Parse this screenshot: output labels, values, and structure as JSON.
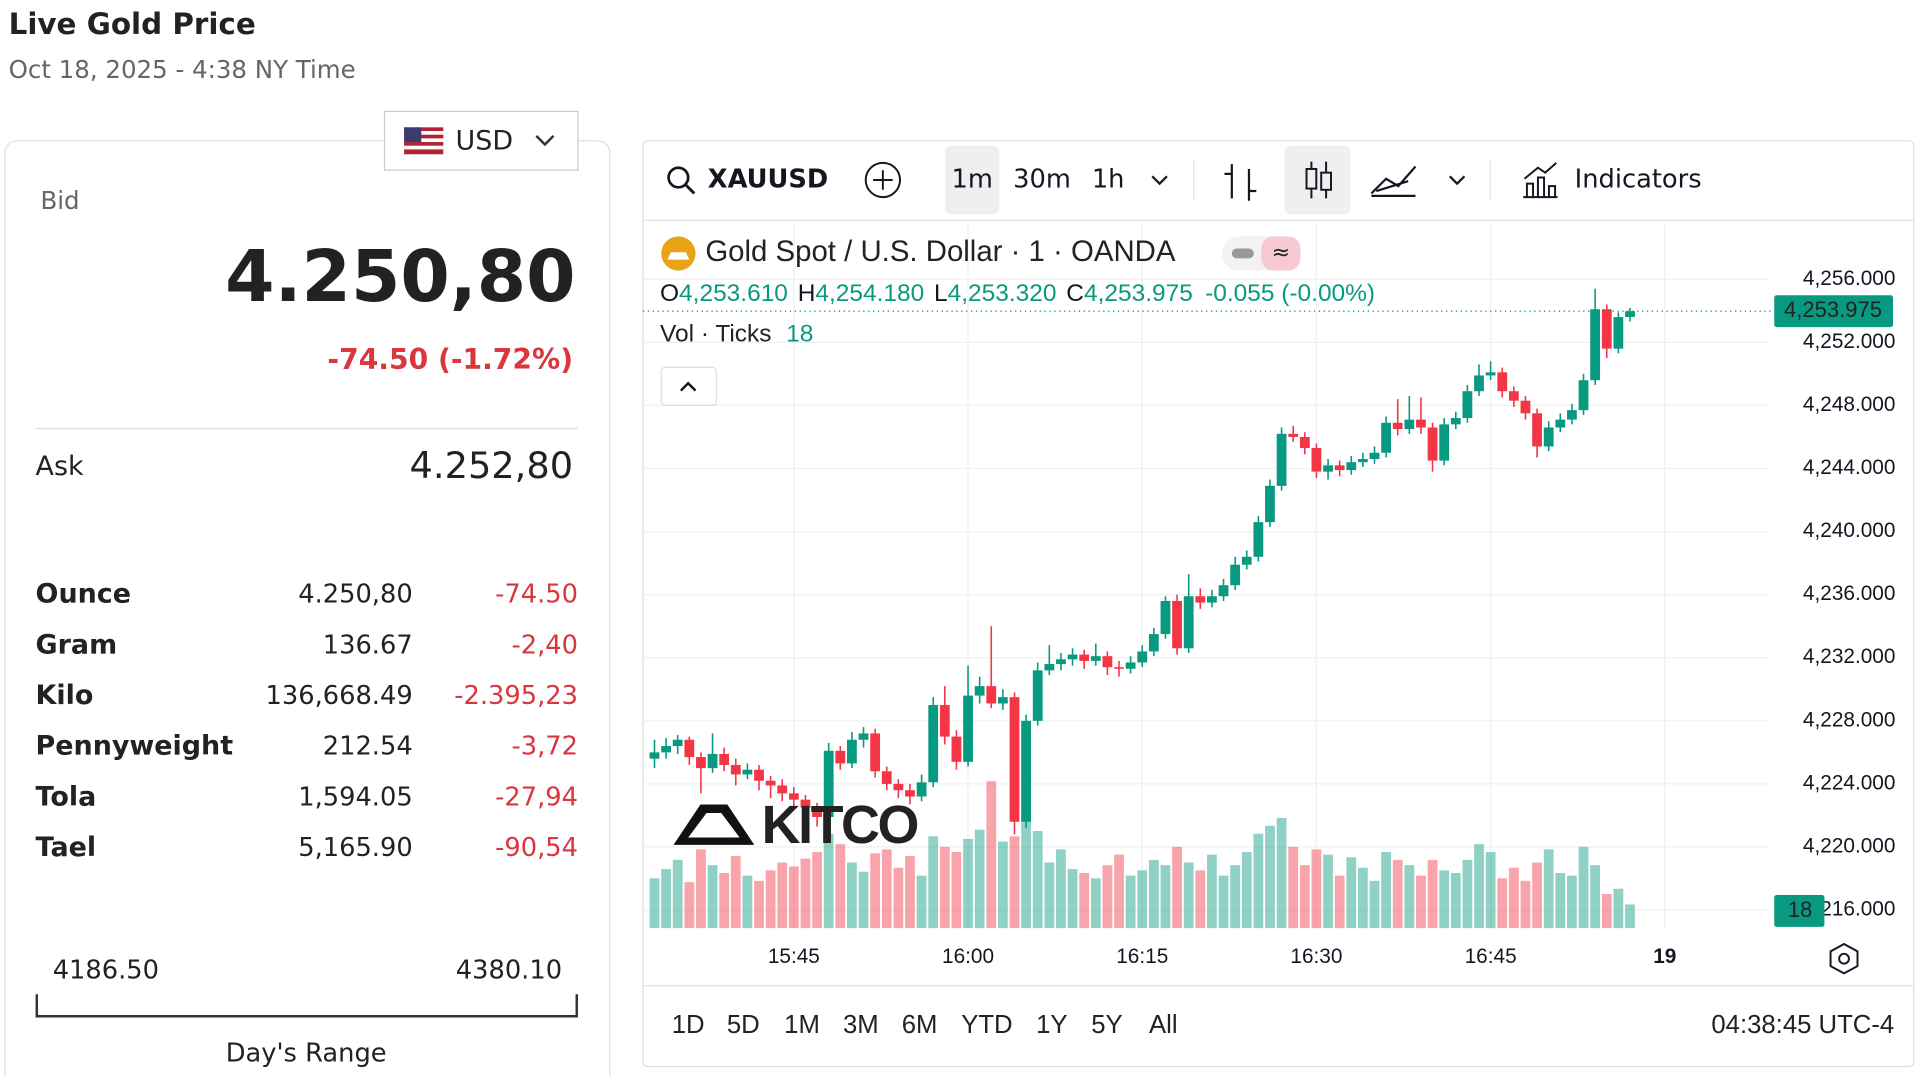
{
  "header": {
    "title": "Live Gold Price",
    "date": "Oct 18, 2025 - 4:38 NY Time"
  },
  "quote": {
    "currency": "USD",
    "bid_label": "Bid",
    "bid": "4.250,80",
    "change": "-74.50 (-1.72%)",
    "ask_label": "Ask",
    "ask": "4.252,80",
    "units": [
      {
        "name": "Ounce",
        "price": "4.250,80",
        "change": "-74.50"
      },
      {
        "name": "Gram",
        "price": "136.67",
        "change": "-2,40"
      },
      {
        "name": "Kilo",
        "price": "136,668.49",
        "change": "-2.395,23"
      },
      {
        "name": "Pennyweight",
        "price": "212.54",
        "change": "-3,72"
      },
      {
        "name": "Tola",
        "price": "1,594.05",
        "change": "-27,94"
      },
      {
        "name": "Tael",
        "price": "5,165.90",
        "change": "-90,54"
      }
    ],
    "range": {
      "low": "4186.50",
      "high": "4380.10",
      "label": "Day's Range"
    }
  },
  "toolbar": {
    "symbol": "XAUUSD",
    "intervals": [
      "1m",
      "30m",
      "1h"
    ],
    "indicators": "Indicators"
  },
  "footer": {
    "ranges": [
      "1D",
      "5D",
      "1M",
      "3M",
      "6M",
      "YTD",
      "1Y",
      "5Y",
      "All"
    ],
    "clock": "04:38:45 UTC-4"
  },
  "logo": "KITCO",
  "chart_data": {
    "type": "candlestick",
    "title": "Gold Spot / U.S. Dollar · 1 · OANDA",
    "legend": [
      {
        "key": "O",
        "value": "4,253.610"
      },
      {
        "key": "H",
        "value": "4,254.180"
      },
      {
        "key": "L",
        "value": "4,253.320"
      },
      {
        "key": "C",
        "value": "4,253.975"
      }
    ],
    "change_label": "-0.055 (-0.00%)",
    "last_price_label": "4,253.975",
    "volume_label": "Vol · Ticks",
    "up_color": "#089981",
    "down_color": "#f23645",
    "grid": true,
    "x": [
      "15:33",
      "15:34",
      "15:35",
      "15:36",
      "15:37",
      "15:38",
      "15:39",
      "15:40",
      "15:41",
      "15:42",
      "15:43",
      "15:44",
      "15:45",
      "15:46",
      "15:47",
      "15:48",
      "15:49",
      "15:50",
      "15:51",
      "15:52",
      "15:53",
      "15:54",
      "15:55",
      "15:56",
      "15:57",
      "15:58",
      "15:59",
      "16:00",
      "16:01",
      "16:02",
      "16:03",
      "16:04",
      "16:05",
      "16:06",
      "16:07",
      "16:08",
      "16:09",
      "16:10",
      "16:11",
      "16:12",
      "16:13",
      "16:14",
      "16:15",
      "16:16",
      "16:17",
      "16:18",
      "16:19",
      "16:20",
      "16:21",
      "16:22",
      "16:23",
      "16:24",
      "16:25",
      "16:26",
      "16:27",
      "16:28",
      "16:29",
      "16:30",
      "16:31",
      "16:32",
      "16:33",
      "16:34",
      "16:35",
      "16:36",
      "16:37",
      "16:38",
      "16:39",
      "16:40",
      "16:41",
      "16:42",
      "16:43",
      "16:44",
      "16:45",
      "16:46",
      "16:47",
      "16:48",
      "16:49",
      "16:50",
      "16:51",
      "16:52",
      "16:53",
      "16:54",
      "16:55",
      "16:56",
      "16:57"
    ],
    "open": [
      4225.6,
      4226.0,
      4226.4,
      4226.8,
      4225.7,
      4225.0,
      4225.9,
      4225.2,
      4224.6,
      4224.9,
      4224.2,
      4223.9,
      4223.4,
      4223.0,
      4222.5,
      4221.9,
      4226.1,
      4225.3,
      4226.8,
      4227.2,
      4224.8,
      4224.0,
      4223.6,
      4223.2,
      4224.1,
      4229.0,
      4227.0,
      4225.4,
      4229.6,
      4230.2,
      4229.1,
      4229.5,
      4221.6,
      4228.0,
      4231.2,
      4231.6,
      4231.9,
      4232.2,
      4231.8,
      4232.1,
      4231.4,
      4231.3,
      4231.7,
      4232.4,
      4233.5,
      4235.6,
      4232.6,
      4235.9,
      4235.5,
      4235.9,
      4236.6,
      4237.9,
      4238.4,
      4240.6,
      4242.9,
      4246.2,
      4246.0,
      4245.3,
      4243.8,
      4244.2,
      4243.9,
      4244.4,
      4244.6,
      4245.0,
      4246.9,
      4246.5,
      4247.1,
      4246.6,
      4244.5,
      4246.8,
      4247.2,
      4248.9,
      4249.9,
      4250.1,
      4248.9,
      4248.3,
      4247.5,
      4245.4,
      4246.6,
      4247.1,
      4247.7,
      4249.6,
      4254.1,
      4251.6,
      4253.61
    ],
    "high": [
      4226.8,
      4226.9,
      4227.1,
      4227.0,
      4226.0,
      4227.2,
      4226.3,
      4225.6,
      4225.3,
      4225.2,
      4224.5,
      4224.3,
      4223.8,
      4223.3,
      4222.8,
      4226.6,
      4226.4,
      4227.3,
      4227.6,
      4227.5,
      4225.1,
      4224.3,
      4224.0,
      4224.6,
      4229.5,
      4230.2,
      4227.4,
      4231.5,
      4230.8,
      4234.0,
      4230.0,
      4229.8,
      4228.4,
      4231.7,
      4232.8,
      4232.3,
      4232.6,
      4232.5,
      4232.9,
      4232.4,
      4231.8,
      4232.1,
      4232.8,
      4233.9,
      4235.9,
      4236.0,
      4237.3,
      4236.4,
      4236.3,
      4237.0,
      4238.4,
      4238.8,
      4241.0,
      4243.3,
      4246.6,
      4246.7,
      4246.3,
      4245.6,
      4244.6,
      4244.5,
      4244.8,
      4245.0,
      4245.4,
      4247.3,
      4248.4,
      4248.6,
      4248.5,
      4246.9,
      4247.2,
      4247.6,
      4249.3,
      4250.6,
      4250.8,
      4250.4,
      4249.2,
      4248.6,
      4247.8,
      4247.0,
      4247.5,
      4248.1,
      4250.0,
      4255.4,
      4254.4,
      4253.9,
      4254.18
    ],
    "low": [
      4225.0,
      4225.6,
      4225.9,
      4225.2,
      4223.4,
      4224.7,
      4224.8,
      4223.9,
      4224.3,
      4223.6,
      4223.1,
      4222.9,
      4222.4,
      4221.9,
      4221.3,
      4221.6,
      4224.9,
      4225.0,
      4226.3,
      4224.4,
      4223.6,
      4223.1,
      4222.7,
      4222.9,
      4223.8,
      4226.5,
      4224.9,
      4225.1,
      4229.1,
      4228.8,
      4228.7,
      4220.8,
      4221.2,
      4227.7,
      4230.9,
      4231.2,
      4231.5,
      4231.3,
      4231.5,
      4230.9,
      4230.8,
      4231.0,
      4231.4,
      4232.1,
      4233.2,
      4232.2,
      4232.3,
      4235.1,
      4235.2,
      4235.6,
      4236.3,
      4237.6,
      4238.1,
      4240.3,
      4242.6,
      4245.7,
      4244.9,
      4243.4,
      4243.3,
      4243.5,
      4243.6,
      4244.1,
      4244.3,
      4244.7,
      4246.1,
      4246.2,
      4246.2,
      4243.8,
      4244.2,
      4246.5,
      4246.9,
      4248.6,
      4249.6,
      4248.5,
      4247.9,
      4247.1,
      4244.7,
      4245.1,
      4246.3,
      4246.8,
      4247.4,
      4249.3,
      4251.0,
      4251.3,
      4253.32
    ],
    "close": [
      4226.0,
      4226.4,
      4226.8,
      4225.7,
      4225.0,
      4225.9,
      4225.2,
      4224.6,
      4224.9,
      4224.2,
      4223.9,
      4223.4,
      4223.0,
      4222.5,
      4221.9,
      4226.1,
      4225.3,
      4226.8,
      4227.2,
      4224.8,
      4224.0,
      4223.6,
      4223.2,
      4224.1,
      4229.0,
      4227.0,
      4225.4,
      4229.6,
      4230.2,
      4229.1,
      4229.5,
      4221.6,
      4228.0,
      4231.2,
      4231.6,
      4231.9,
      4232.2,
      4231.8,
      4232.1,
      4231.4,
      4231.3,
      4231.7,
      4232.4,
      4233.5,
      4235.6,
      4232.6,
      4235.9,
      4235.5,
      4235.9,
      4236.6,
      4237.9,
      4238.4,
      4240.6,
      4242.9,
      4246.2,
      4246.0,
      4245.3,
      4243.8,
      4244.2,
      4243.9,
      4244.4,
      4244.6,
      4245.0,
      4246.9,
      4246.5,
      4247.1,
      4246.6,
      4244.5,
      4246.8,
      4247.2,
      4248.9,
      4249.9,
      4250.1,
      4248.9,
      4248.3,
      4247.5,
      4245.4,
      4246.6,
      4247.1,
      4247.7,
      4249.6,
      4254.1,
      4251.6,
      4253.6,
      4253.975
    ],
    "volume": [
      38,
      45,
      52,
      35,
      60,
      48,
      42,
      55,
      40,
      36,
      44,
      50,
      47,
      53,
      58,
      72,
      64,
      50,
      43,
      57,
      60,
      46,
      55,
      40,
      70,
      62,
      58,
      68,
      75,
      112,
      66,
      70,
      88,
      74,
      50,
      60,
      45,
      42,
      38,
      48,
      56,
      40,
      44,
      52,
      48,
      62,
      50,
      44,
      56,
      40,
      48,
      58,
      72,
      78,
      84,
      62,
      48,
      60,
      56,
      40,
      54,
      46,
      36,
      58,
      52,
      48,
      40,
      52,
      44,
      42,
      52,
      64,
      58,
      38,
      46,
      36,
      50,
      60,
      42,
      40,
      62,
      48,
      26,
      30,
      18
    ],
    "xlim": [
      "15:32",
      "17:09"
    ],
    "xticks": [
      "15:45",
      "16:00",
      "16:15",
      "16:30",
      "16:45",
      {
        "value": "17:00",
        "label": "19"
      }
    ],
    "ylim": [
      4214.7,
      4259.5
    ],
    "yticks": [
      {
        "value": 4216,
        "label": "4,216.000"
      },
      {
        "value": 4220,
        "label": "4,220.000"
      },
      {
        "value": 4224,
        "label": "4,224.000"
      },
      {
        "value": 4228,
        "label": "4,228.000"
      },
      {
        "value": 4232,
        "label": "4,232.000"
      },
      {
        "value": 4236,
        "label": "4,236.000"
      },
      {
        "value": 4240,
        "label": "4,240.000"
      },
      {
        "value": 4244,
        "label": "4,244.000"
      },
      {
        "value": 4248,
        "label": "4,248.000"
      },
      {
        "value": 4252,
        "label": "4,252.000"
      },
      {
        "value": 4256,
        "label": "4,256.000"
      }
    ]
  }
}
